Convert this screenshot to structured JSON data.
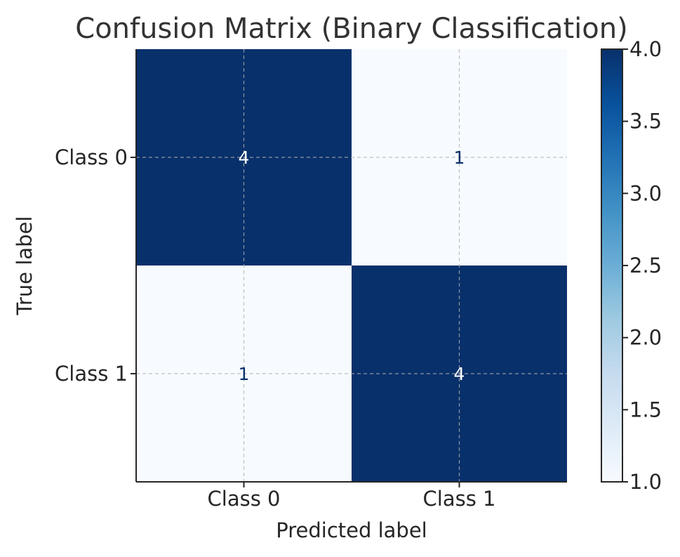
{
  "chart_data": {
    "type": "heatmap",
    "title": "Confusion Matrix (Binary Classification)",
    "xlabel": "Predicted label",
    "ylabel": "True label",
    "x_categories": [
      "Class 0",
      "Class 1"
    ],
    "y_categories": [
      "Class 0",
      "Class 1"
    ],
    "values": [
      [
        4,
        1
      ],
      [
        1,
        4
      ]
    ],
    "colormap": "Blues",
    "colorbar": {
      "min": 1.0,
      "max": 4.0,
      "ticks": [
        1.0,
        1.5,
        2.0,
        2.5,
        3.0,
        3.5,
        4.0
      ],
      "tick_labels": [
        "1.0",
        "1.5",
        "2.0",
        "2.5",
        "3.0",
        "3.5",
        "4.0"
      ]
    },
    "grid": true,
    "colors": {
      "low": "#f7fbff",
      "high": "#08306b",
      "text_on_dark": "#ffffff",
      "text_on_light": "#08306b"
    }
  }
}
